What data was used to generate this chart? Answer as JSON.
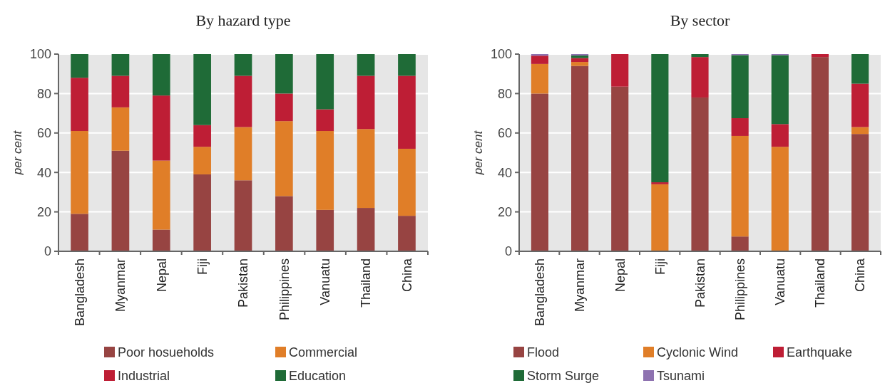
{
  "chart_data": [
    {
      "type": "bar",
      "title": "By hazard type",
      "ylabel": "per cent",
      "stacked": true,
      "grid": "y",
      "legend": "bottom",
      "ylim": [
        0,
        100
      ],
      "yticks": [
        0,
        20,
        40,
        60,
        80,
        100
      ],
      "categories": [
        "Bangladesh",
        "Myanmar",
        "Nepal",
        "Fiji",
        "Pakistan",
        "Philippines",
        "Vanuatu",
        "Thailand",
        "China"
      ],
      "series": [
        {
          "name": "Poor hosueholds",
          "color": "#974442",
          "values": [
            19,
            51,
            11,
            39,
            36,
            28,
            21,
            22,
            18
          ]
        },
        {
          "name": "Commercial",
          "color": "#e07e28",
          "values": [
            42,
            22,
            35,
            14,
            27,
            38,
            40,
            40,
            34
          ]
        },
        {
          "name": "Industrial",
          "color": "#be1e35",
          "values": [
            27,
            16,
            33,
            11,
            26,
            14,
            11,
            27,
            37
          ]
        },
        {
          "name": "Education",
          "color": "#1f6b37",
          "values": [
            12,
            11,
            21,
            36,
            11,
            20,
            28,
            11,
            11
          ]
        }
      ]
    },
    {
      "type": "bar",
      "title": "By sector",
      "ylabel": "per cent",
      "stacked": true,
      "grid": "y",
      "legend": "bottom",
      "ylim": [
        0,
        100
      ],
      "yticks": [
        0,
        20,
        40,
        60,
        80,
        100
      ],
      "categories": [
        "Bangladesh",
        "Myanmar",
        "Nepal",
        "Fiji",
        "Pakistan",
        "Philippines",
        "Vanuatu",
        "Thailand",
        "China"
      ],
      "series": [
        {
          "name": "Flood",
          "color": "#974442",
          "values": [
            80,
            94,
            83.5,
            0,
            78,
            7.5,
            0,
            98.5,
            59.5
          ]
        },
        {
          "name": "Cyclonic Wind",
          "color": "#e07e28",
          "values": [
            15,
            2,
            0,
            34,
            0,
            51,
            53,
            0,
            3.5
          ]
        },
        {
          "name": "Earthquake",
          "color": "#be1e35",
          "values": [
            4.2,
            2,
            16.5,
            1,
            20.5,
            9,
            11.5,
            1.5,
            22
          ]
        },
        {
          "name": "Storm Surge",
          "color": "#1f6b37",
          "values": [
            0,
            1.3,
            0,
            65,
            1.5,
            32,
            35,
            0,
            15
          ]
        },
        {
          "name": "Tsunami",
          "color": "#8e72b0",
          "values": [
            0.8,
            0.7,
            0,
            0,
            0,
            0.5,
            0.5,
            0,
            0
          ]
        }
      ]
    }
  ]
}
